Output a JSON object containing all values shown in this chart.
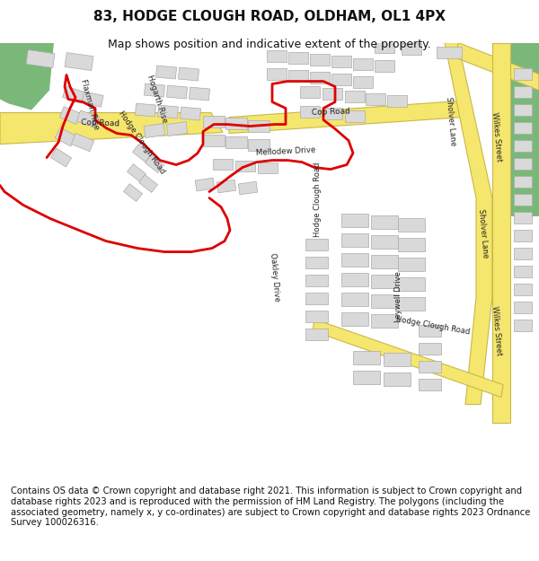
{
  "title": "83, HODGE CLOUGH ROAD, OLDHAM, OL1 4PX",
  "subtitle": "Map shows position and indicative extent of the property.",
  "copyright": "Contains OS data © Crown copyright and database right 2021. This information is subject to Crown copyright and database rights 2023 and is reproduced with the permission of HM Land Registry. The polygons (including the associated geometry, namely x, y co-ordinates) are subject to Crown copyright and database rights 2023 Ordnance Survey 100026316.",
  "bg_color": "#ffffff",
  "map_bg": "#f5f3ee",
  "road_yellow": "#f5e66e",
  "road_yellow_border": "#c8b84a",
  "building_fill": "#d9d9d9",
  "building_stroke": "#aaaaaa",
  "red_line_color": "#dd0000",
  "green_fill": "#7ab87a",
  "title_fontsize": 11,
  "subtitle_fontsize": 9,
  "copyright_fontsize": 7.2
}
